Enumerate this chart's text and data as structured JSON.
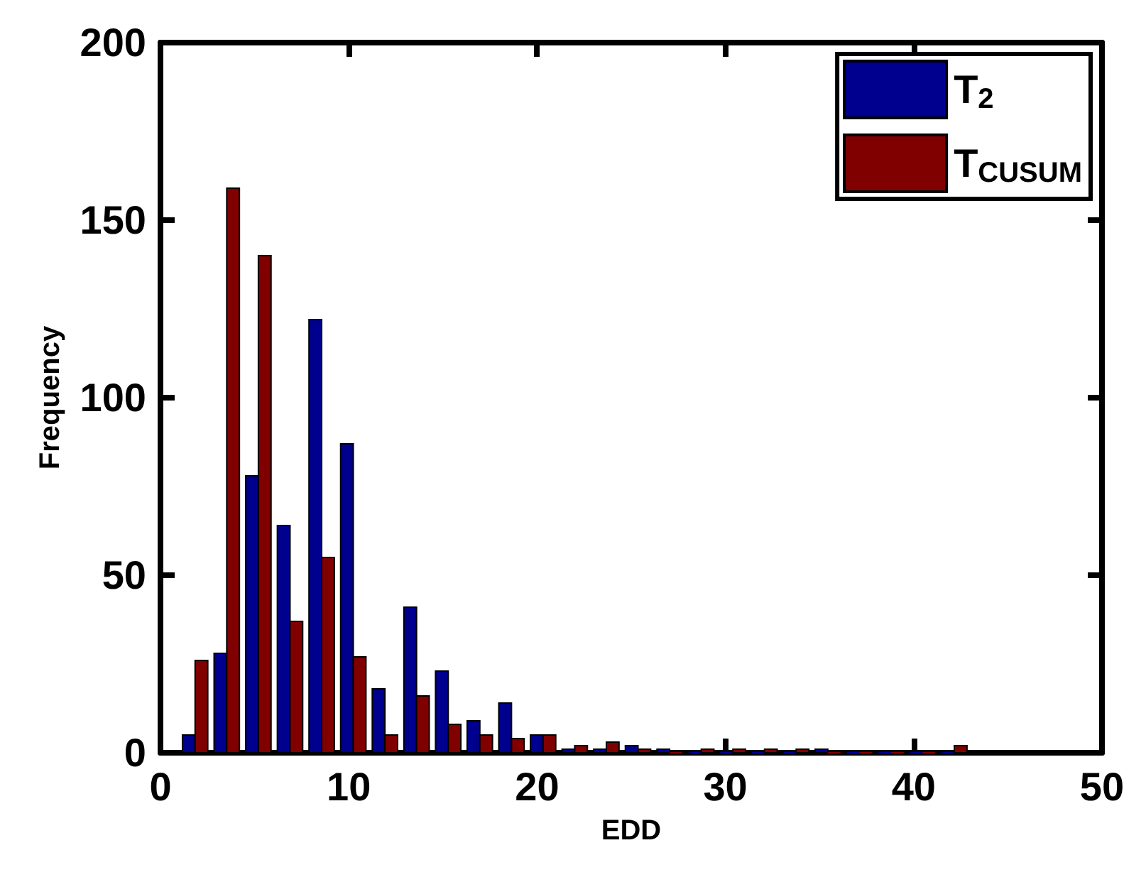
{
  "chart_data": {
    "type": "histogram",
    "xlabel": "EDD",
    "ylabel": "Frequency",
    "bins": [
      1,
      2.68,
      4.36,
      6.04,
      7.72,
      9.4,
      11.08,
      12.76,
      14.44,
      16.12,
      17.8,
      19.48,
      21.16,
      22.84,
      24.52,
      26.2,
      27.88,
      29.56,
      31.24,
      32.92,
      34.6,
      36.28,
      37.96,
      39.64,
      41.32,
      43
    ],
    "series": [
      {
        "name": "T$_{2}$",
        "color": "#00008f",
        "values": [
          5,
          28,
          78,
          64,
          122,
          87,
          18,
          41,
          23,
          9,
          14,
          5,
          1,
          1,
          2,
          1,
          0,
          0,
          0,
          0,
          1,
          0,
          0,
          0,
          0
        ]
      },
      {
        "name": "T$_{CUSUM}$",
        "color": "#800000",
        "values": [
          26,
          159,
          140,
          37,
          55,
          27,
          5,
          16,
          8,
          5,
          4,
          5,
          2,
          3,
          1,
          0,
          1,
          1,
          1,
          1,
          0,
          0,
          0,
          0,
          2
        ]
      }
    ],
    "xlim": [
      0,
      50
    ],
    "xticks": [
      0,
      10,
      20,
      30,
      40,
      50
    ],
    "ylim": [
      0,
      200
    ],
    "yticks": [
      0,
      50,
      100,
      150,
      200
    ],
    "grid": false,
    "legend": "top right"
  }
}
